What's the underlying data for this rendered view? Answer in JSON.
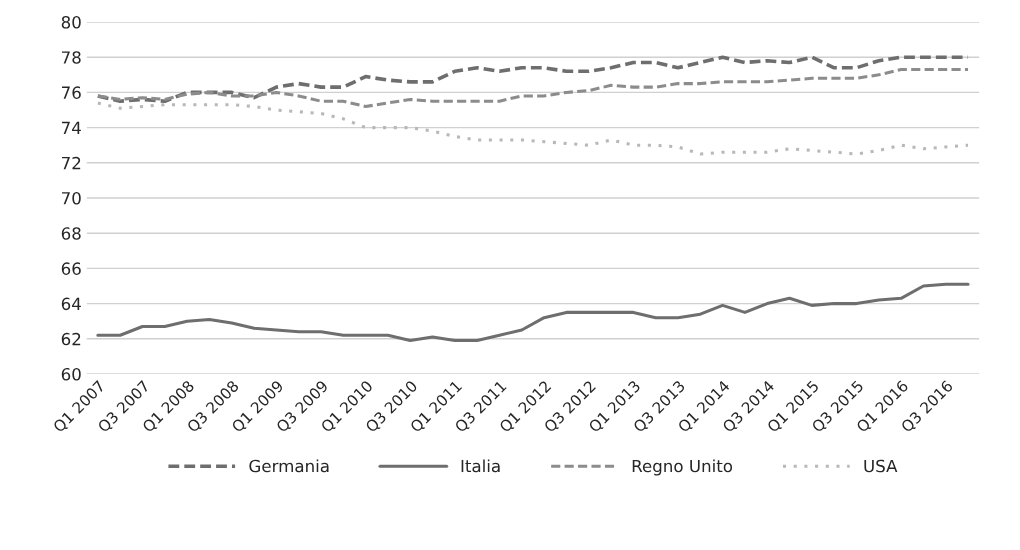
{
  "chart_data": {
    "type": "line",
    "categories": [
      "Q1 2007",
      null,
      "Q3 2007",
      null,
      "Q1 2008",
      null,
      "Q3 2008",
      null,
      "Q1 2009",
      null,
      "Q3 2009",
      null,
      "Q1 2010",
      null,
      "Q3 2010",
      null,
      "Q1 2011",
      null,
      "Q3 2011",
      null,
      "Q1 2012",
      null,
      "Q3 2012",
      null,
      "Q1 2013",
      null,
      "Q3 2013",
      null,
      "Q1 2014",
      null,
      "Q3 2014",
      null,
      "Q1 2015",
      null,
      "Q3 2015",
      null,
      "Q1 2016",
      null,
      "Q3 2016",
      null
    ],
    "series": [
      {
        "name": "Germania",
        "color": "#6e6e6e",
        "line_style": "dashed",
        "values": [
          75.8,
          75.5,
          75.6,
          75.5,
          76.0,
          76.0,
          76.0,
          75.7,
          76.3,
          76.5,
          76.3,
          76.3,
          76.9,
          76.7,
          76.6,
          76.6,
          77.2,
          77.4,
          77.2,
          77.4,
          77.4,
          77.2,
          77.2,
          77.4,
          77.7,
          77.7,
          77.4,
          77.7,
          78.0,
          77.7,
          77.8,
          77.7,
          78.0,
          77.4,
          77.4,
          77.8,
          78.0,
          78.0,
          78.0,
          78.0
        ]
      },
      {
        "name": "Italia",
        "color": "#6e6e6e",
        "line_style": "solid",
        "values": [
          62.2,
          62.2,
          62.7,
          62.7,
          63.0,
          63.1,
          62.9,
          62.6,
          62.5,
          62.4,
          62.4,
          62.2,
          62.2,
          62.2,
          61.9,
          62.1,
          61.9,
          61.9,
          62.2,
          62.5,
          63.2,
          63.5,
          63.5,
          63.5,
          63.5,
          63.2,
          63.2,
          63.4,
          63.9,
          63.5,
          64.0,
          64.3,
          63.9,
          64.0,
          64.0,
          64.2,
          64.3,
          65.0,
          65.1,
          65.1
        ]
      },
      {
        "name": "Regno Unito",
        "color": "#8c8c8c",
        "line_style": "dashed",
        "values": [
          75.8,
          75.6,
          75.7,
          75.6,
          75.9,
          76.0,
          75.8,
          75.8,
          76.0,
          75.8,
          75.5,
          75.5,
          75.2,
          75.4,
          75.6,
          75.5,
          75.5,
          75.5,
          75.5,
          75.8,
          75.8,
          76.0,
          76.1,
          76.4,
          76.3,
          76.3,
          76.5,
          76.5,
          76.6,
          76.6,
          76.6,
          76.7,
          76.8,
          76.8,
          76.8,
          77.0,
          77.3,
          77.3,
          77.3,
          77.3
        ]
      },
      {
        "name": "USA",
        "color": "#b8b8b8",
        "line_style": "dotted",
        "values": [
          75.4,
          75.1,
          75.2,
          75.3,
          75.3,
          75.3,
          75.3,
          75.2,
          75.0,
          74.9,
          74.8,
          74.5,
          74.0,
          74.0,
          74.0,
          73.8,
          73.5,
          73.3,
          73.3,
          73.3,
          73.2,
          73.1,
          73.0,
          73.3,
          73.0,
          73.0,
          72.9,
          72.5,
          72.6,
          72.6,
          72.6,
          72.8,
          72.7,
          72.6,
          72.5,
          72.7,
          73.0,
          72.8,
          72.9,
          73.0
        ]
      }
    ],
    "ylim": [
      60,
      80
    ],
    "yticks": [
      60,
      62,
      64,
      66,
      68,
      70,
      72,
      74,
      76,
      78,
      80
    ],
    "grid": "y",
    "legend": "bottom",
    "marker": "none"
  }
}
